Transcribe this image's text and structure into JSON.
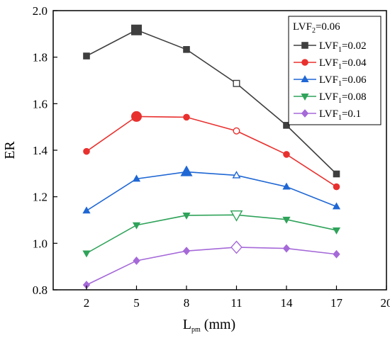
{
  "chart_data": {
    "type": "line",
    "xlabel": {
      "main": "L",
      "sub": "pm",
      "unit": " (mm)"
    },
    "ylabel": "ER",
    "xlim": [
      0,
      20
    ],
    "ylim": [
      0.8,
      2.0
    ],
    "xticks": [
      2,
      5,
      8,
      11,
      14,
      17,
      20
    ],
    "yticks": [
      0.8,
      1.0,
      1.2,
      1.4,
      1.6,
      1.8,
      2.0
    ],
    "grid": false,
    "legend_position": "top-right",
    "legend_title": {
      "main": "LVF",
      "sub": "2",
      "value": "=0.06"
    },
    "x": [
      2,
      5,
      8,
      11,
      14,
      17
    ],
    "series": [
      {
        "name": {
          "main": "LVF",
          "sub": "1",
          "value": "=0.02"
        },
        "color": "#3f3f3f",
        "marker": "square",
        "values": [
          1.805,
          1.917,
          1.833,
          1.687,
          1.507,
          1.298
        ],
        "highlight_index": 1,
        "hollow_index": 3
      },
      {
        "name": {
          "main": "LVF",
          "sub": "1",
          "value": "=0.04"
        },
        "color": "#e8312f",
        "marker": "circle",
        "values": [
          1.395,
          1.545,
          1.542,
          1.483,
          1.382,
          1.243
        ],
        "highlight_index": 1,
        "hollow_index": 3
      },
      {
        "name": {
          "main": "LVF",
          "sub": "1",
          "value": "=0.06"
        },
        "color": "#1f67d4",
        "marker": "triangle-up",
        "values": [
          1.14,
          1.277,
          1.307,
          1.292,
          1.243,
          1.158
        ],
        "highlight_index": 2,
        "hollow_index": 3
      },
      {
        "name": {
          "main": "LVF",
          "sub": "1",
          "value": "=0.08"
        },
        "color": "#2fa35a",
        "marker": "triangle-down",
        "values": [
          0.957,
          1.078,
          1.12,
          1.122,
          1.102,
          1.056
        ],
        "highlight_index": 3,
        "hollow_index": 3
      },
      {
        "name": {
          "main": "LVF",
          "sub": "1",
          "value": "=0.1"
        },
        "color": "#a569d8",
        "marker": "diamond",
        "values": [
          0.821,
          0.925,
          0.967,
          0.983,
          0.978,
          0.953
        ],
        "highlight_index": 3,
        "hollow_index": 3
      }
    ]
  }
}
